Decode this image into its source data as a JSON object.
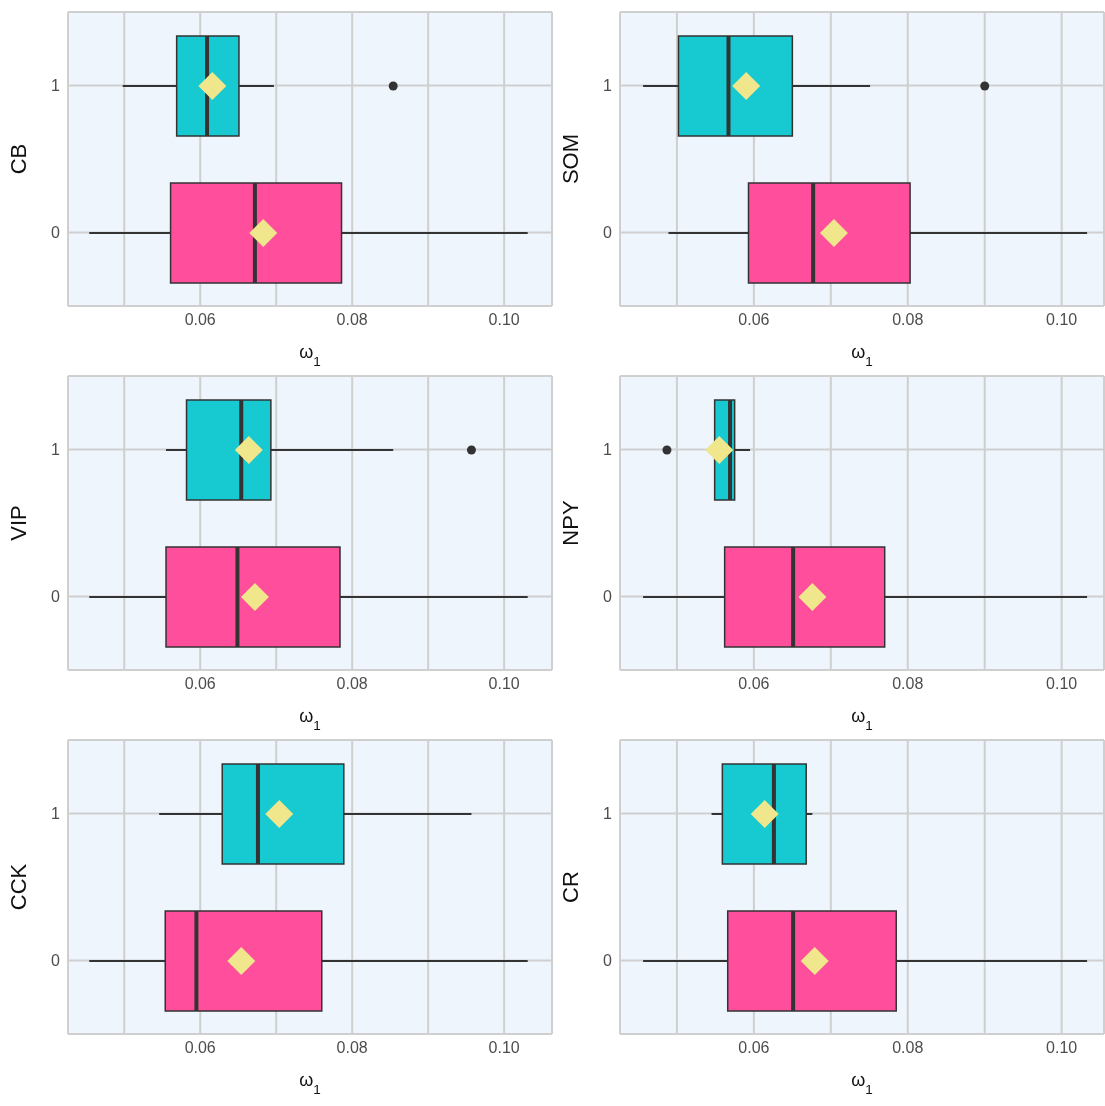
{
  "chart_data": [
    {
      "type": "box",
      "orientation": "horizontal",
      "ylabel": "CB",
      "xlabel": "ω$_{1}$",
      "categories": [
        "1",
        "0"
      ],
      "colors": [
        "#17c9d0",
        "#ff4f9c"
      ],
      "xlim": [
        0.0426,
        0.1063
      ],
      "xticks": [
        {
          "value": 0.05,
          "label": null
        },
        {
          "value": 0.06,
          "label": "0.06"
        },
        {
          "value": 0.07,
          "label": null
        },
        {
          "value": 0.08,
          "label": "0.08"
        },
        {
          "value": 0.09,
          "label": null
        },
        {
          "value": 0.1,
          "label": "0.10"
        }
      ],
      "grid": true,
      "boxes": [
        {
          "low": 0.0498,
          "q1": 0.0569,
          "median": 0.0609,
          "q3": 0.0651,
          "high": 0.0697,
          "mean": 0.0616,
          "outliers": [
            0.0854
          ]
        },
        {
          "low": 0.0454,
          "q1": 0.0561,
          "median": 0.0672,
          "q3": 0.0786,
          "high": 0.1031,
          "mean": 0.0683
        }
      ]
    },
    {
      "type": "box",
      "orientation": "horizontal",
      "ylabel": "SOM",
      "xlabel": "ω$_{1}$",
      "categories": [
        "1",
        "0"
      ],
      "colors": [
        "#17c9d0",
        "#ff4f9c"
      ],
      "xlim": [
        0.0426,
        0.1055
      ],
      "xticks": [
        {
          "value": 0.05,
          "label": null
        },
        {
          "value": 0.06,
          "label": "0.06"
        },
        {
          "value": 0.07,
          "label": null
        },
        {
          "value": 0.08,
          "label": "0.08"
        },
        {
          "value": 0.09,
          "label": null
        },
        {
          "value": 0.1,
          "label": "0.10"
        }
      ],
      "grid": true,
      "boxes": [
        {
          "low": 0.0456,
          "q1": 0.0502,
          "median": 0.0567,
          "q3": 0.065,
          "high": 0.0751,
          "mean": 0.059,
          "outliers": [
            0.09
          ]
        },
        {
          "low": 0.0489,
          "q1": 0.0593,
          "median": 0.0677,
          "q3": 0.0803,
          "high": 0.1033,
          "mean": 0.0704
        }
      ]
    },
    {
      "type": "box",
      "orientation": "horizontal",
      "ylabel": "VIP",
      "xlabel": "ω$_{1}$",
      "categories": [
        "1",
        "0"
      ],
      "colors": [
        "#17c9d0",
        "#ff4f9c"
      ],
      "xlim": [
        0.0426,
        0.1063
      ],
      "xticks": [
        {
          "value": 0.05,
          "label": null
        },
        {
          "value": 0.06,
          "label": "0.06"
        },
        {
          "value": 0.07,
          "label": null
        },
        {
          "value": 0.08,
          "label": "0.08"
        },
        {
          "value": 0.09,
          "label": null
        },
        {
          "value": 0.1,
          "label": "0.10"
        }
      ],
      "grid": true,
      "boxes": [
        {
          "low": 0.0555,
          "q1": 0.0582,
          "median": 0.0654,
          "q3": 0.0693,
          "high": 0.0854,
          "mean": 0.0664,
          "outliers": [
            0.0957
          ]
        },
        {
          "low": 0.0454,
          "q1": 0.0555,
          "median": 0.0649,
          "q3": 0.0784,
          "high": 0.1031,
          "mean": 0.0672
        }
      ]
    },
    {
      "type": "box",
      "orientation": "horizontal",
      "ylabel": "NPY",
      "xlabel": "ω$_{1}$",
      "categories": [
        "1",
        "0"
      ],
      "colors": [
        "#17c9d0",
        "#ff4f9c"
      ],
      "xlim": [
        0.0426,
        0.1055
      ],
      "xticks": [
        {
          "value": 0.05,
          "label": null
        },
        {
          "value": 0.06,
          "label": "0.06"
        },
        {
          "value": 0.07,
          "label": null
        },
        {
          "value": 0.08,
          "label": "0.08"
        },
        {
          "value": 0.09,
          "label": null
        },
        {
          "value": 0.1,
          "label": "0.10"
        }
      ],
      "grid": true,
      "boxes": [
        {
          "low": 0.0538,
          "q1": 0.0549,
          "median": 0.0569,
          "q3": 0.0575,
          "high": 0.0595,
          "mean": 0.0555,
          "outliers": [
            0.0487
          ]
        },
        {
          "low": 0.0456,
          "q1": 0.0562,
          "median": 0.0651,
          "q3": 0.077,
          "high": 0.1033,
          "mean": 0.0676
        }
      ]
    },
    {
      "type": "box",
      "orientation": "horizontal",
      "ylabel": "CCK",
      "xlabel": "ω$_{1}$",
      "categories": [
        "1",
        "0"
      ],
      "colors": [
        "#17c9d0",
        "#ff4f9c"
      ],
      "xlim": [
        0.0426,
        0.1063
      ],
      "xticks": [
        {
          "value": 0.05,
          "label": null
        },
        {
          "value": 0.06,
          "label": "0.06"
        },
        {
          "value": 0.07,
          "label": null
        },
        {
          "value": 0.08,
          "label": "0.08"
        },
        {
          "value": 0.09,
          "label": null
        },
        {
          "value": 0.1,
          "label": "0.10"
        }
      ],
      "grid": true,
      "boxes": [
        {
          "low": 0.0546,
          "q1": 0.0629,
          "median": 0.0676,
          "q3": 0.0789,
          "high": 0.0957,
          "mean": 0.0704
        },
        {
          "low": 0.0454,
          "q1": 0.0554,
          "median": 0.0595,
          "q3": 0.076,
          "high": 0.1031,
          "mean": 0.0654
        }
      ]
    },
    {
      "type": "box",
      "orientation": "horizontal",
      "ylabel": "CR",
      "xlabel": "ω$_{1}$",
      "categories": [
        "1",
        "0"
      ],
      "colors": [
        "#17c9d0",
        "#ff4f9c"
      ],
      "xlim": [
        0.0426,
        0.1055
      ],
      "xticks": [
        {
          "value": 0.05,
          "label": null
        },
        {
          "value": 0.06,
          "label": "0.06"
        },
        {
          "value": 0.07,
          "label": null
        },
        {
          "value": 0.08,
          "label": "0.08"
        },
        {
          "value": 0.09,
          "label": null
        },
        {
          "value": 0.1,
          "label": "0.10"
        }
      ],
      "grid": true,
      "boxes": [
        {
          "low": 0.0545,
          "q1": 0.0559,
          "median": 0.0626,
          "q3": 0.0668,
          "high": 0.0676,
          "mean": 0.0614
        },
        {
          "low": 0.0456,
          "q1": 0.0566,
          "median": 0.0651,
          "q3": 0.0785,
          "high": 0.1033,
          "mean": 0.0679
        }
      ]
    }
  ]
}
